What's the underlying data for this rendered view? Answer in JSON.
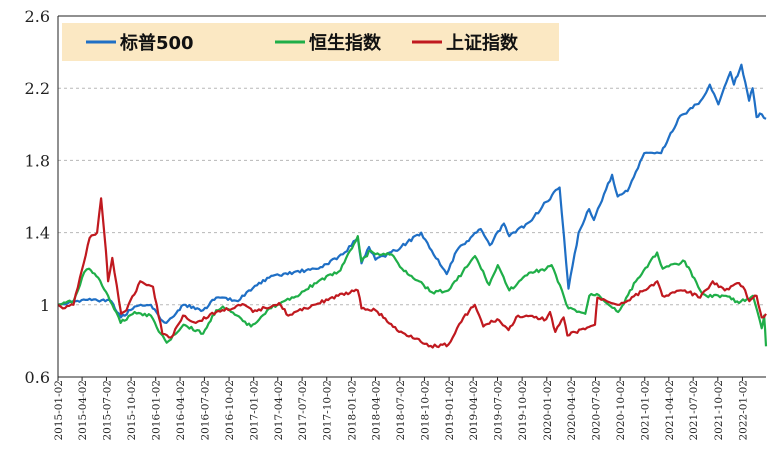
{
  "chart_data": {
    "type": "line",
    "title": "",
    "xlabel": "",
    "ylabel": "",
    "ylim": [
      0.6,
      2.6
    ],
    "y_ticks": [
      "0.6",
      "1",
      "1.4",
      "1.8",
      "2.2",
      "2.6"
    ],
    "y_tick_values": [
      0.6,
      1.0,
      1.4,
      1.8,
      2.2,
      2.6
    ],
    "grid": "horizontal dashed",
    "legend_placement": "top-left",
    "x_tick_labels": [
      "2015-01-02",
      "2015-04-02",
      "2015-07-02",
      "2015-10-02",
      "2016-01-02",
      "2016-04-02",
      "2016-07-02",
      "2016-10-02",
      "2017-01-02",
      "2017-04-02",
      "2017-07-02",
      "2017-10-02",
      "2018-01-02",
      "2018-04-02",
      "2018-07-02",
      "2018-10-02",
      "2019-01-02",
      "2019-04-02",
      "2019-07-02",
      "2019-10-02",
      "2020-01-02",
      "2020-04-02",
      "2020-07-02",
      "2020-10-02",
      "2021-01-02",
      "2021-04-02",
      "2021-07-02",
      "2021-10-02",
      "2022-01-02"
    ],
    "x_start": "2015-01-02",
    "x_end": "2022-03-31",
    "legend": [
      "标普500",
      "恒生指数",
      "上证指数"
    ],
    "series": [
      {
        "name": "标普500",
        "color": "#1f6fc5",
        "points": [
          [
            "2015-01-02",
            1.0
          ],
          [
            "2015-03-01",
            1.02
          ],
          [
            "2015-05-15",
            1.03
          ],
          [
            "2015-07-20",
            1.02
          ],
          [
            "2015-08-25",
            0.93
          ],
          [
            "2015-10-15",
            0.99
          ],
          [
            "2015-12-15",
            1.0
          ],
          [
            "2016-01-20",
            0.92
          ],
          [
            "2016-02-11",
            0.9
          ],
          [
            "2016-04-15",
            1.0
          ],
          [
            "2016-06-27",
            0.97
          ],
          [
            "2016-08-15",
            1.04
          ],
          [
            "2016-11-04",
            1.02
          ],
          [
            "2016-12-15",
            1.08
          ],
          [
            "2017-03-01",
            1.15
          ],
          [
            "2017-06-01",
            1.18
          ],
          [
            "2017-09-01",
            1.2
          ],
          [
            "2017-12-01",
            1.28
          ],
          [
            "2018-01-26",
            1.37
          ],
          [
            "2018-02-09",
            1.23
          ],
          [
            "2018-03-09",
            1.32
          ],
          [
            "2018-04-02",
            1.25
          ],
          [
            "2018-06-15",
            1.3
          ],
          [
            "2018-09-20",
            1.4
          ],
          [
            "2018-10-29",
            1.3
          ],
          [
            "2018-12-24",
            1.17
          ],
          [
            "2019-01-31",
            1.3
          ],
          [
            "2019-04-30",
            1.42
          ],
          [
            "2019-06-03",
            1.33
          ],
          [
            "2019-07-26",
            1.45
          ],
          [
            "2019-08-15",
            1.38
          ],
          [
            "2019-10-31",
            1.46
          ],
          [
            "2019-12-31",
            1.57
          ],
          [
            "2020-02-19",
            1.65
          ],
          [
            "2020-03-23",
            1.09
          ],
          [
            "2020-04-30",
            1.4
          ],
          [
            "2020-06-08",
            1.53
          ],
          [
            "2020-06-26",
            1.47
          ],
          [
            "2020-09-02",
            1.72
          ],
          [
            "2020-09-23",
            1.6
          ],
          [
            "2020-10-30",
            1.63
          ],
          [
            "2020-12-31",
            1.84
          ],
          [
            "2021-03-04",
            1.84
          ],
          [
            "2021-05-07",
            2.03
          ],
          [
            "2021-07-30",
            2.13
          ],
          [
            "2021-09-02",
            2.22
          ],
          [
            "2021-10-04",
            2.11
          ],
          [
            "2021-11-18",
            2.29
          ],
          [
            "2021-12-01",
            2.22
          ],
          [
            "2021-12-29",
            2.33
          ],
          [
            "2022-01-27",
            2.13
          ],
          [
            "2022-02-09",
            2.2
          ],
          [
            "2022-02-24",
            2.04
          ],
          [
            "2022-03-08",
            2.06
          ],
          [
            "2022-03-31",
            2.03
          ]
        ]
      },
      {
        "name": "恒生指数",
        "color": "#1fae48",
        "points": [
          [
            "2015-01-02",
            1.0
          ],
          [
            "2015-03-01",
            1.02
          ],
          [
            "2015-04-10",
            1.18
          ],
          [
            "2015-04-28",
            1.2
          ],
          [
            "2015-06-01",
            1.15
          ],
          [
            "2015-07-08",
            1.05
          ],
          [
            "2015-08-24",
            0.9
          ],
          [
            "2015-10-15",
            0.96
          ],
          [
            "2015-12-15",
            0.94
          ],
          [
            "2016-01-21",
            0.84
          ],
          [
            "2016-02-12",
            0.79
          ],
          [
            "2016-04-15",
            0.89
          ],
          [
            "2016-06-27",
            0.84
          ],
          [
            "2016-08-15",
            0.97
          ],
          [
            "2016-09-09",
            0.99
          ],
          [
            "2016-12-23",
            0.88
          ],
          [
            "2017-03-01",
            0.98
          ],
          [
            "2017-06-01",
            1.04
          ],
          [
            "2017-09-01",
            1.13
          ],
          [
            "2017-11-22",
            1.19
          ],
          [
            "2018-01-26",
            1.38
          ],
          [
            "2018-02-09",
            1.24
          ],
          [
            "2018-03-15",
            1.3
          ],
          [
            "2018-04-02",
            1.28
          ],
          [
            "2018-06-01",
            1.28
          ],
          [
            "2018-07-10",
            1.2
          ],
          [
            "2018-09-12",
            1.13
          ],
          [
            "2018-10-30",
            1.07
          ],
          [
            "2018-12-31",
            1.08
          ],
          [
            "2019-04-09",
            1.27
          ],
          [
            "2019-06-01",
            1.11
          ],
          [
            "2019-07-03",
            1.22
          ],
          [
            "2019-08-15",
            1.08
          ],
          [
            "2019-11-04",
            1.18
          ],
          [
            "2019-12-31",
            1.2
          ],
          [
            "2020-01-20",
            1.22
          ],
          [
            "2020-03-23",
            0.98
          ],
          [
            "2020-05-25",
            0.95
          ],
          [
            "2020-06-09",
            1.05
          ],
          [
            "2020-07-07",
            1.06
          ],
          [
            "2020-09-25",
            0.96
          ],
          [
            "2020-11-30",
            1.13
          ],
          [
            "2021-02-17",
            1.29
          ],
          [
            "2021-03-10",
            1.2
          ],
          [
            "2021-06-01",
            1.24
          ],
          [
            "2021-07-28",
            1.08
          ],
          [
            "2021-08-20",
            1.05
          ],
          [
            "2021-11-01",
            1.05
          ],
          [
            "2021-12-20",
            1.01
          ],
          [
            "2022-02-10",
            1.05
          ],
          [
            "2022-03-15",
            0.87
          ],
          [
            "2022-03-24",
            0.94
          ],
          [
            "2022-03-31",
            0.77
          ]
        ]
      },
      {
        "name": "上证指数",
        "color": "#c0191f",
        "points": [
          [
            "2015-01-02",
            1.0
          ],
          [
            "2015-01-20",
            0.98
          ],
          [
            "2015-03-01",
            1.0
          ],
          [
            "2015-03-25",
            1.15
          ],
          [
            "2015-04-30",
            1.37
          ],
          [
            "2015-05-28",
            1.4
          ],
          [
            "2015-06-12",
            1.59
          ],
          [
            "2015-06-30",
            1.3
          ],
          [
            "2015-07-08",
            1.13
          ],
          [
            "2015-07-24",
            1.26
          ],
          [
            "2015-08-26",
            0.95
          ],
          [
            "2015-09-15",
            0.97
          ],
          [
            "2015-11-05",
            1.13
          ],
          [
            "2015-12-23",
            1.1
          ],
          [
            "2016-01-27",
            0.84
          ],
          [
            "2016-02-29",
            0.82
          ],
          [
            "2016-04-13",
            0.94
          ],
          [
            "2016-05-31",
            0.9
          ],
          [
            "2016-08-15",
            0.96
          ],
          [
            "2016-11-29",
            1.0
          ],
          [
            "2016-12-30",
            0.96
          ],
          [
            "2017-04-07",
            1.01
          ],
          [
            "2017-05-11",
            0.94
          ],
          [
            "2017-08-15",
            1.0
          ],
          [
            "2017-11-14",
            1.05
          ],
          [
            "2018-01-26",
            1.08
          ],
          [
            "2018-02-09",
            0.98
          ],
          [
            "2018-04-02",
            0.97
          ],
          [
            "2018-06-29",
            0.85
          ],
          [
            "2018-09-11",
            0.81
          ],
          [
            "2018-10-18",
            0.77
          ],
          [
            "2018-12-31",
            0.78
          ],
          [
            "2019-02-25",
            0.93
          ],
          [
            "2019-04-08",
            1.0
          ],
          [
            "2019-05-10",
            0.88
          ],
          [
            "2019-07-01",
            0.92
          ],
          [
            "2019-08-12",
            0.86
          ],
          [
            "2019-09-17",
            0.94
          ],
          [
            "2019-12-31",
            0.92
          ],
          [
            "2020-01-14",
            0.96
          ],
          [
            "2020-02-03",
            0.85
          ],
          [
            "2020-03-05",
            0.93
          ],
          [
            "2020-03-19",
            0.83
          ],
          [
            "2020-06-30",
            0.89
          ],
          [
            "2020-07-09",
            1.04
          ],
          [
            "2020-09-30",
            1.0
          ],
          [
            "2020-12-31",
            1.08
          ],
          [
            "2021-02-18",
            1.13
          ],
          [
            "2021-03-09",
            1.05
          ],
          [
            "2021-06-01",
            1.08
          ],
          [
            "2021-07-28",
            1.04
          ],
          [
            "2021-09-13",
            1.13
          ],
          [
            "2021-10-28",
            1.08
          ],
          [
            "2021-12-13",
            1.12
          ],
          [
            "2022-01-04",
            1.1
          ],
          [
            "2022-01-28",
            1.02
          ],
          [
            "2022-02-24",
            1.05
          ],
          [
            "2022-03-15",
            0.93
          ],
          [
            "2022-03-31",
            0.95
          ]
        ]
      }
    ]
  }
}
